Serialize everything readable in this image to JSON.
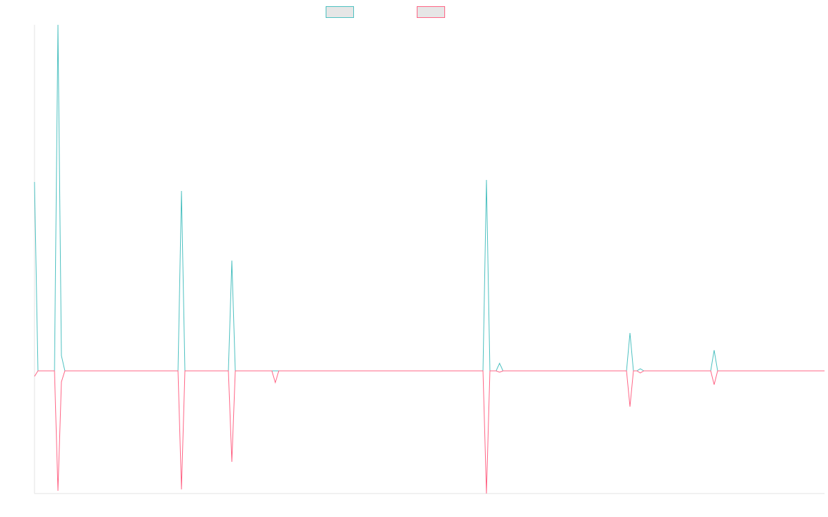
{
  "chart_data": {
    "type": "line",
    "x": [
      0,
      5,
      29,
      34,
      39,
      44,
      208,
      213,
      218,
      281,
      286,
      291,
      344,
      349,
      354,
      650,
      655,
      660,
      669,
      674,
      679,
      858,
      863,
      868,
      873,
      878,
      883,
      980,
      985,
      990,
      1145
    ],
    "series": [
      {
        "color": "#4bc0c0",
        "values": [
          274,
          0,
          0,
          502,
          22,
          0,
          0,
          261,
          0,
          0,
          160,
          0,
          0,
          0,
          0,
          0,
          277,
          0,
          0,
          11,
          0,
          0,
          55,
          0,
          0,
          3,
          0,
          0,
          30,
          0,
          0
        ]
      },
      {
        "color": "#ff6384",
        "values": [
          -8,
          0,
          0,
          -174,
          -16,
          0,
          0,
          -172,
          0,
          0,
          -132,
          0,
          0,
          -17,
          0,
          0,
          -178,
          0,
          0,
          -2,
          0,
          0,
          -52,
          0,
          0,
          -3,
          0,
          0,
          -20,
          0,
          0
        ]
      }
    ],
    "xlim": [
      0,
      1145
    ],
    "ylim": [
      -178,
      502
    ]
  }
}
